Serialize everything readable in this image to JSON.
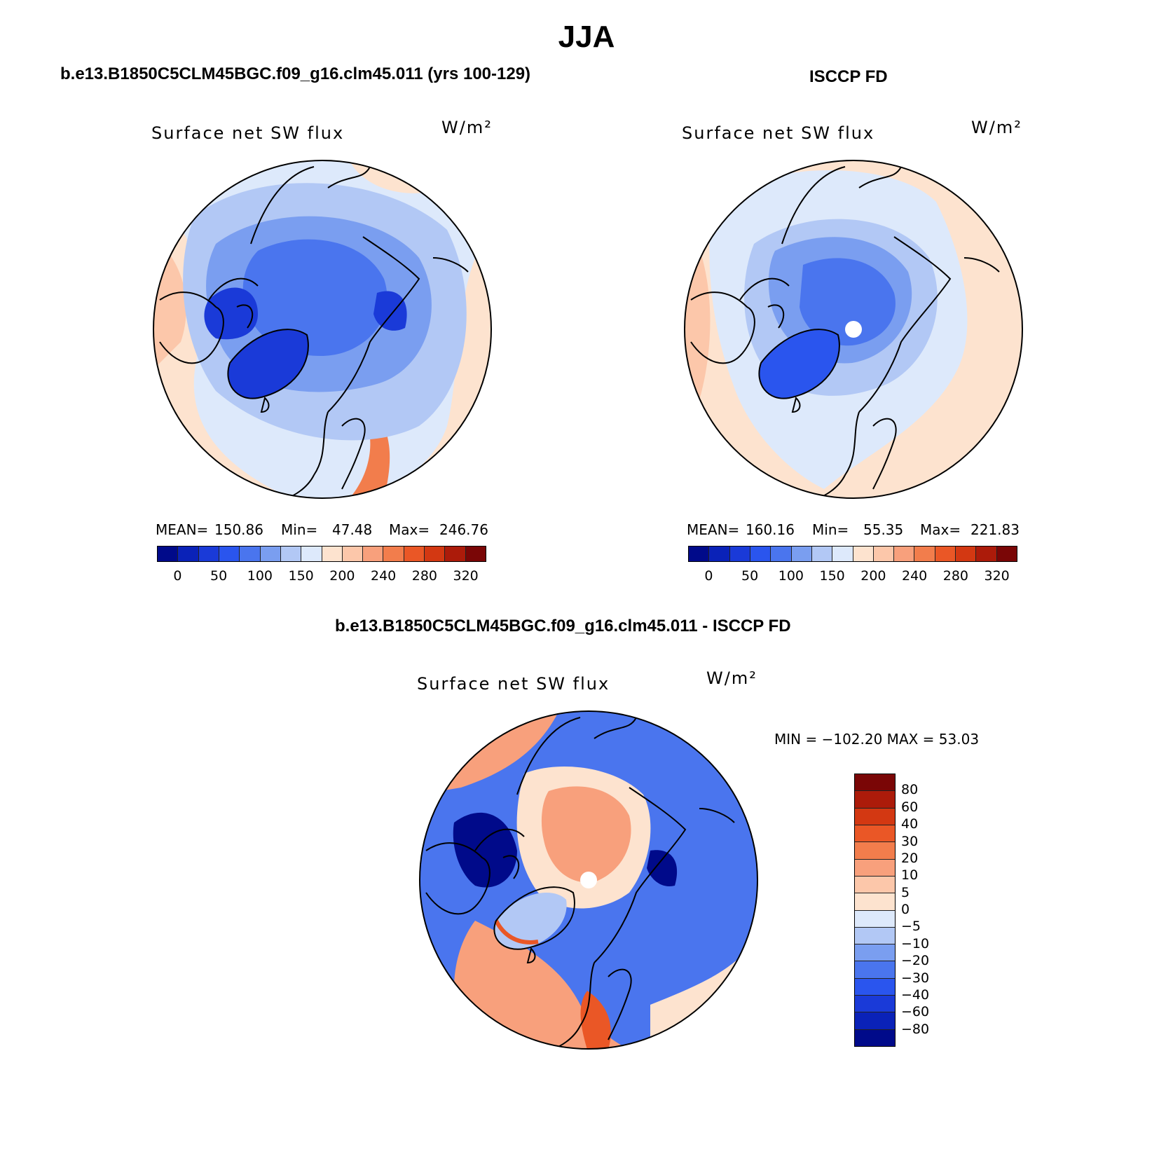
{
  "title": "JJA",
  "panels": [
    {
      "name": "model",
      "heading": "b.e13.B1850C5CLM45BGC.f09_g16.clm45.011 (yrs 100-129)",
      "field_label": "Surface net SW flux",
      "units": "W/m²",
      "stats": {
        "mean_label": "MEAN=",
        "mean": "150.86",
        "min_label": "Min=",
        "min": "47.48",
        "max_label": "Max=",
        "max": "246.76"
      }
    },
    {
      "name": "obs",
      "heading": "ISCCP FD",
      "field_label": "Surface net SW flux",
      "units": "W/m²",
      "stats": {
        "mean_label": "MEAN=",
        "mean": "160.16",
        "min_label": "Min=",
        "min": "55.35",
        "max_label": "Max=",
        "max": "221.83"
      }
    },
    {
      "name": "diff",
      "heading": "b.e13.B1850C5CLM45BGC.f09_g16.clm45.011 - ISCCP FD",
      "field_label": "Surface net SW flux",
      "units": "W/m²",
      "minmax": "MIN = −102.20 MAX =   53.03"
    }
  ],
  "colorbar_abs": {
    "colors": [
      "#000a8a",
      "#0a22b8",
      "#1a3ad8",
      "#2a55ee",
      "#4a75ee",
      "#7a9ef0",
      "#b2c8f5",
      "#dde9fb",
      "#fde3cf",
      "#fcc7aa",
      "#f8a07c",
      "#f27d4c",
      "#ea5726",
      "#d33812",
      "#ac1b0a",
      "#7a0606"
    ],
    "ticks": [
      "0",
      "50",
      "100",
      "150",
      "200",
      "240",
      "280",
      "320"
    ]
  },
  "colorbar_diff": {
    "colors_top_to_bottom": [
      "#7a0606",
      "#ac1b0a",
      "#d33812",
      "#ea5726",
      "#f27d4c",
      "#f8a07c",
      "#fcc7aa",
      "#fde3cf",
      "#dde9fb",
      "#b2c8f5",
      "#7a9ef0",
      "#4a75ee",
      "#2a55ee",
      "#1a3ad8",
      "#0a22b8",
      "#000a8a"
    ],
    "ticks": [
      "80",
      "60",
      "40",
      "30",
      "20",
      "10",
      "5",
      "0",
      "−5",
      "−10",
      "−20",
      "−30",
      "−40",
      "−60",
      "−80"
    ]
  },
  "map_colors": {
    "abs_low": "#1a3ad8",
    "abs_mid": "#4a75ee",
    "abs_light": "#7a9ef0",
    "abs_pale": "#b2c8f5",
    "abs_icy": "#dde9fb",
    "abs_warm1": "#fde3cf",
    "abs_warm2": "#fcc7aa",
    "abs_warm3": "#f8a07c",
    "abs_warm4": "#f27d4c",
    "diff_neg_deep": "#000a8a",
    "diff_neg": "#1a3ad8",
    "diff_neg_mid": "#4a75ee",
    "diff_neg_light": "#b2c8f5",
    "diff_pos_light": "#fde3cf",
    "diff_pos": "#f8a07c",
    "diff_pos_strong": "#ea5726"
  }
}
